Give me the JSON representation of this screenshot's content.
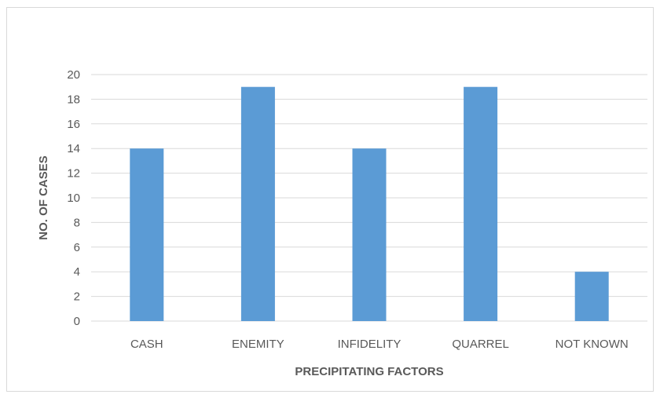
{
  "chart_data": {
    "type": "bar",
    "categories": [
      "CASH",
      "ENEMITY",
      "INFIDELITY",
      "QUARREL",
      "NOT KNOWN"
    ],
    "values": [
      14,
      19,
      14,
      19,
      4
    ],
    "title": "",
    "xlabel": "PRECIPITATING FACTORS",
    "ylabel": "NO. OF CASES",
    "ylim": [
      0,
      20
    ],
    "yticks": [
      0,
      2,
      4,
      6,
      8,
      10,
      12,
      14,
      16,
      18,
      20
    ],
    "grid": true,
    "legend": "none",
    "bar_color": "#5b9bd5",
    "grid_color": "#d9d9d9",
    "text_color": "#595959"
  }
}
